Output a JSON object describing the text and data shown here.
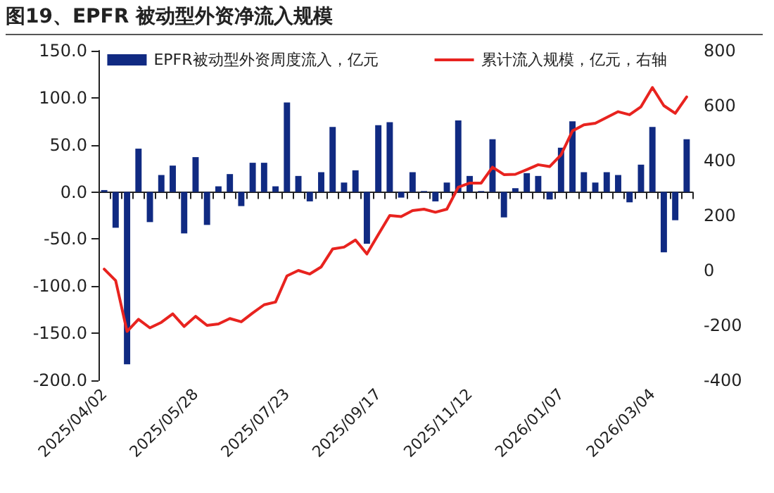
{
  "chart_data": {
    "type": "bar",
    "title": "图19、EPFR 被动型外资净流入规模",
    "categories": [
      "2025/04/02",
      null,
      null,
      null,
      null,
      null,
      null,
      null,
      "2025/05/28",
      null,
      null,
      null,
      null,
      null,
      null,
      null,
      "2025/07/23",
      null,
      null,
      null,
      null,
      null,
      null,
      null,
      "2025/09/17",
      null,
      null,
      null,
      null,
      null,
      null,
      null,
      "2025/11/12",
      null,
      null,
      null,
      null,
      null,
      null,
      null,
      "2026/01/07",
      null,
      null,
      null,
      null,
      null,
      null,
      null,
      "2026/03/04",
      null,
      null,
      null
    ],
    "series": [
      {
        "name": "EPFR被动型外资周度流入，亿元",
        "color": "#102a82",
        "values": [
          2,
          -38,
          -183,
          46,
          -32,
          18,
          28,
          -44,
          37,
          -35,
          6,
          19,
          -15,
          31,
          31,
          6,
          95,
          17,
          -10,
          21,
          69,
          10,
          23,
          -55,
          71,
          74,
          -6,
          21,
          1,
          -10,
          10,
          76,
          17,
          1,
          56,
          -27,
          4,
          20,
          17,
          -8,
          47,
          75,
          21,
          10,
          21,
          18,
          -11,
          29,
          69,
          -64,
          -30,
          56
        ]
      },
      {
        "name": "累计流入规模，亿元，右轴",
        "type": "line",
        "axis": "y2",
        "color": "#e8231f",
        "values": [
          5,
          -37,
          -222,
          -178,
          -209,
          -189,
          -158,
          -204,
          -167,
          -200,
          -195,
          -175,
          -187,
          -155,
          -125,
          -115,
          -20,
          0,
          -13,
          13,
          78,
          85,
          111,
          60,
          131,
          200,
          196,
          218,
          223,
          212,
          223,
          303,
          318,
          318,
          376,
          349,
          350,
          367,
          385,
          378,
          421,
          508,
          530,
          536,
          557,
          578,
          567,
          596,
          666,
          600,
          572,
          632
        ]
      }
    ],
    "ylim": [
      -200,
      150
    ],
    "yticks": [
      {
        "value": -200,
        "label": "-200.0"
      },
      {
        "value": -150,
        "label": "-150.0"
      },
      {
        "value": -100,
        "label": "-100.0"
      },
      {
        "value": -50,
        "label": "-50.0"
      },
      {
        "value": 0,
        "label": "0.0"
      },
      {
        "value": 50,
        "label": "50.0"
      },
      {
        "value": 100,
        "label": "100.0"
      },
      {
        "value": 150,
        "label": "150.0"
      }
    ],
    "y2lim": [
      -400,
      800
    ],
    "y2ticks": [
      -400,
      -200,
      0,
      200,
      400,
      600,
      800
    ],
    "legend": "top",
    "line_style": "solid"
  }
}
